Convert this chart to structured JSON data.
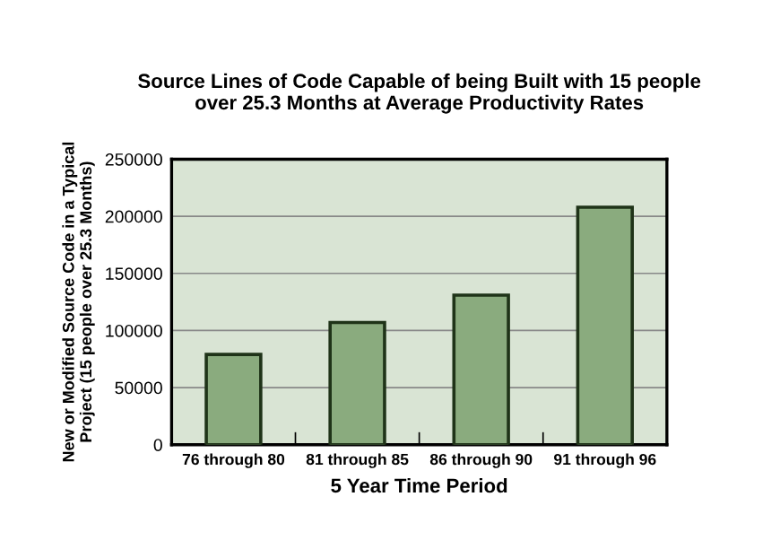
{
  "chart_data": {
    "type": "bar",
    "title": "Source Lines of Code Capable of being Built with 15 people\nover 25.3 Months at Average Productivity Rates",
    "xlabel": "5 Year Time Period",
    "ylabel": "New or Modified Source Code in a Typical\nProject (15 people over 25.3 Months)",
    "categories": [
      "76 through 80",
      "81 through 85",
      "86 through 90",
      "91 through 96"
    ],
    "values": [
      79000,
      107000,
      131000,
      208000
    ],
    "color": "#8aab7e",
    "ylim": [
      0,
      250000
    ],
    "yticks": [
      0,
      50000,
      100000,
      150000,
      200000,
      250000
    ],
    "grid": "y"
  }
}
